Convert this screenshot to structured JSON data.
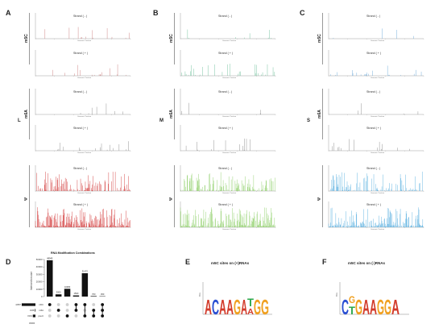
{
  "panels": {
    "A": {
      "letter": "A",
      "side_label": "L",
      "colors": {
        "m5C": "#c97a7a",
        "m6A": "#8a8a8a",
        "psi": "#d23a3a"
      }
    },
    "B": {
      "letter": "B",
      "side_label": "M",
      "colors": {
        "m5C": "#6dbf9a",
        "m6A": "#8a8a8a",
        "psi": "#8fcf6a"
      }
    },
    "C": {
      "letter": "C",
      "side_label": "S",
      "colors": {
        "m5C": "#6aa8d8",
        "m6A": "#8a8a8a",
        "psi": "#5ab0e0"
      }
    }
  },
  "groups": {
    "m5C": "m5C",
    "m6A": "m6A",
    "psi": "Ψ"
  },
  "strands": {
    "minus": "Strand ( - )",
    "plus": "Strand ( + )"
  },
  "axis": {
    "x": "Genomic Position",
    "y": "Modification"
  },
  "upset": {
    "letter": "D",
    "title": "RNA Modification Combinations",
    "ylabel": "Intersection size",
    "set_size_label": "Set size",
    "set_axis_label": "30000",
    "sets": [
      "m5C",
      "m6A",
      "pseU"
    ],
    "set_size_labels": [
      "42587",
      "1938",
      "8163"
    ],
    "intersections": [
      {
        "value": 48945,
        "label": "48945"
      },
      {
        "value": 3000,
        "label": "3000"
      },
      {
        "value": 10480,
        "label": "10480"
      },
      {
        "value": 1500,
        "label": "1500"
      },
      {
        "value": 31470,
        "label": "31470"
      },
      {
        "value": 700,
        "label": "700"
      },
      {
        "value": 450,
        "label": "450"
      }
    ],
    "yticks": [
      "0",
      "10000",
      "20000",
      "30000",
      "40000",
      "50000"
    ]
  },
  "logos": {
    "E": {
      "letter": "E",
      "title": "m5C sites on (+)RNAs",
      "bits_label": "Bits"
    },
    "F": {
      "letter": "F",
      "title": "m5C sites on (-)RNAs",
      "bits_label": "Bits"
    }
  }
}
